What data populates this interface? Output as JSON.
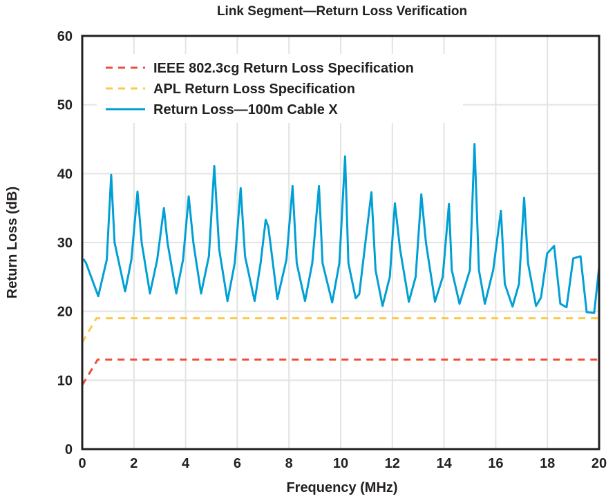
{
  "chart_data": {
    "type": "line",
    "title": "Link Segment—Return Loss Verification",
    "xlabel": "Frequency (MHz)",
    "ylabel": "Return Loss (dB)",
    "xlim": [
      0,
      20
    ],
    "ylim": [
      0,
      60
    ],
    "xticks": [
      0,
      2,
      4,
      6,
      8,
      10,
      12,
      14,
      16,
      18,
      20
    ],
    "yticks": [
      0,
      10,
      20,
      30,
      40,
      50,
      60
    ],
    "grid": true,
    "legend_position": "top-left",
    "series": [
      {
        "name": "IEEE 802.3cg Return Loss Specification",
        "color": "#ef4f3a",
        "style": "dashed",
        "x": [
          0,
          0.6,
          20
        ],
        "y": [
          9.3,
          13,
          13
        ]
      },
      {
        "name": "APL Return Loss Specification",
        "color": "#fcc94a",
        "style": "dashed",
        "x": [
          0,
          0.55,
          20
        ],
        "y": [
          15.5,
          19,
          19
        ]
      },
      {
        "name": "Return Loss—100m Cable X",
        "color": "#009fd4",
        "style": "solid",
        "x": [
          0.05,
          0.15,
          0.62,
          0.95,
          1.12,
          1.25,
          1.66,
          1.9,
          2.14,
          2.3,
          2.62,
          2.9,
          3.16,
          3.3,
          3.64,
          3.9,
          4.12,
          4.3,
          4.6,
          4.9,
          5.11,
          5.3,
          5.62,
          5.9,
          6.13,
          6.3,
          6.67,
          6.9,
          7.1,
          7.2,
          7.55,
          7.9,
          8.14,
          8.3,
          8.62,
          8.9,
          9.16,
          9.3,
          9.67,
          9.95,
          10.17,
          10.3,
          10.58,
          10.72,
          11.19,
          11.35,
          11.62,
          11.9,
          12.1,
          12.3,
          12.64,
          12.9,
          13.12,
          13.3,
          13.65,
          13.95,
          14.19,
          14.3,
          14.6,
          15.0,
          15.18,
          15.35,
          15.58,
          15.9,
          16.2,
          16.35,
          16.65,
          16.9,
          17.1,
          17.25,
          17.56,
          17.75,
          17.99,
          18.26,
          18.5,
          18.74,
          19.0,
          19.28,
          19.52,
          19.81,
          20.0
        ],
        "y": [
          27.6,
          27.0,
          22.2,
          27.5,
          39.8,
          30.0,
          22.9,
          27.5,
          37.4,
          30.0,
          22.6,
          27.5,
          35.0,
          30.0,
          22.6,
          27.5,
          36.7,
          30.0,
          22.6,
          28.0,
          41.1,
          29.0,
          21.5,
          27.0,
          37.9,
          28.0,
          21.5,
          27.0,
          33.3,
          32.3,
          21.8,
          27.5,
          38.2,
          27.0,
          21.5,
          27.0,
          38.2,
          27.0,
          21.3,
          27.0,
          42.5,
          27.0,
          21.9,
          22.5,
          37.3,
          26.0,
          20.8,
          25.0,
          35.7,
          29.0,
          21.4,
          25.0,
          37.0,
          30.0,
          21.4,
          25.0,
          35.6,
          26.0,
          21.1,
          26.0,
          44.3,
          26.0,
          21.1,
          26.0,
          34.6,
          24.0,
          20.7,
          24.0,
          36.5,
          27.0,
          20.8,
          22.0,
          28.4,
          29.5,
          21.1,
          20.6,
          27.7,
          28.0,
          19.9,
          19.8,
          26.4
        ]
      }
    ]
  }
}
